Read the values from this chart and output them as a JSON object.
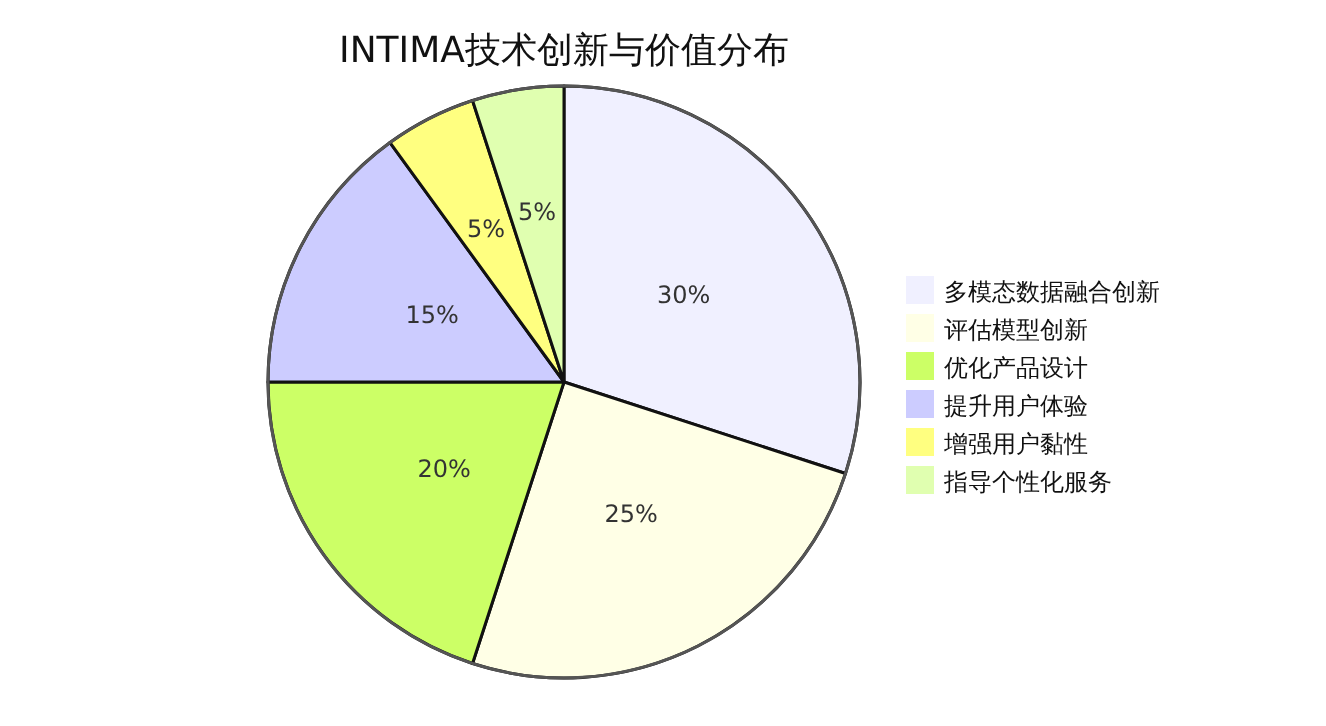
{
  "chart_data": {
    "type": "pie",
    "title": "INTIMA技术创新与价值分布",
    "categories": [
      "多模态数据融合创新",
      "评估模型创新",
      "优化产品设计",
      "提升用户体验",
      "增强用户黏性",
      "指导个性化服务"
    ],
    "values": [
      30,
      25,
      20,
      15,
      5,
      5
    ],
    "colors": [
      "#f0f0ff",
      "#ffffe6",
      "#ccff66",
      "#ccccff",
      "#ffff80",
      "#e0ffb0"
    ],
    "value_labels": [
      "30%",
      "25%",
      "20%",
      "15%",
      "5%",
      "5%"
    ],
    "legend": "right"
  }
}
